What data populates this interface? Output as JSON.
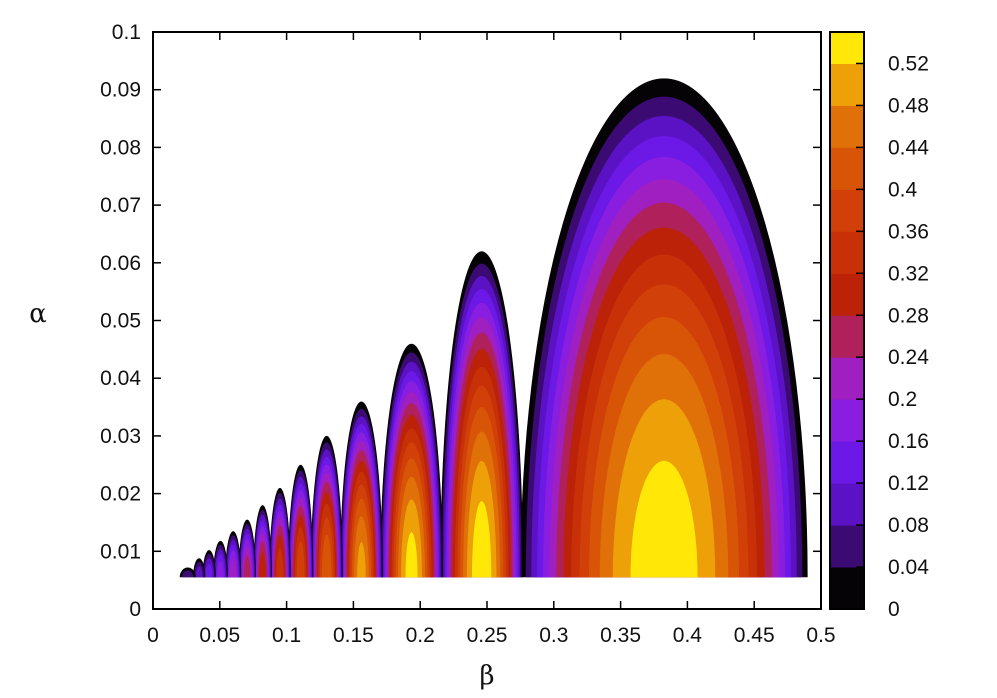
{
  "chart_data": {
    "type": "heatmap",
    "title": "",
    "xlabel": "β",
    "ylabel": "α",
    "xlim": [
      0,
      0.5
    ],
    "ylim": [
      0,
      0.1
    ],
    "xticks": [
      "0",
      "0.05",
      "0.1",
      "0.15",
      "0.2",
      "0.25",
      "0.3",
      "0.35",
      "0.4",
      "0.45",
      "0.5"
    ],
    "yticks": [
      "0",
      "0.01",
      "0.02",
      "0.03",
      "0.04",
      "0.05",
      "0.06",
      "0.07",
      "0.08",
      "0.09",
      "0.1"
    ],
    "colorbar": {
      "range": [
        0,
        0.55
      ],
      "ticks": [
        "0",
        "0.04",
        "0.08",
        "0.12",
        "0.16",
        "0.2",
        "0.24",
        "0.28",
        "0.32",
        "0.36",
        "0.4",
        "0.44",
        "0.48",
        "0.52"
      ],
      "levels": [
        {
          "from": 0.0,
          "to": 0.04,
          "color": "#050305"
        },
        {
          "from": 0.04,
          "to": 0.08,
          "color": "#3c0a73"
        },
        {
          "from": 0.08,
          "to": 0.12,
          "color": "#5a12c4"
        },
        {
          "from": 0.12,
          "to": 0.16,
          "color": "#6c18e6"
        },
        {
          "from": 0.16,
          "to": 0.2,
          "color": "#8a1ee0"
        },
        {
          "from": 0.2,
          "to": 0.24,
          "color": "#a01fc0"
        },
        {
          "from": 0.24,
          "to": 0.28,
          "color": "#b0205a"
        },
        {
          "from": 0.28,
          "to": 0.32,
          "color": "#bb2208"
        },
        {
          "from": 0.32,
          "to": 0.36,
          "color": "#c83008"
        },
        {
          "from": 0.36,
          "to": 0.4,
          "color": "#d04008"
        },
        {
          "from": 0.4,
          "to": 0.44,
          "color": "#d85508"
        },
        {
          "from": 0.44,
          "to": 0.48,
          "color": "#e07008"
        },
        {
          "from": 0.48,
          "to": 0.52,
          "color": "#eea008"
        },
        {
          "from": 0.52,
          "to": 0.55,
          "color": "#ffe808"
        }
      ]
    },
    "series": [
      {
        "beta_range": [
          0.275,
          0.49
        ],
        "alpha_min": 0.0055,
        "alpha_max": 0.092,
        "max_value": 0.55
      },
      {
        "beta_range": [
          0.215,
          0.277
        ],
        "alpha_min": 0.0055,
        "alpha_max": 0.062,
        "max_value": 0.55
      },
      {
        "beta_range": [
          0.17,
          0.217
        ],
        "alpha_min": 0.0055,
        "alpha_max": 0.046,
        "max_value": 0.54
      },
      {
        "beta_range": [
          0.14,
          0.172
        ],
        "alpha_min": 0.0055,
        "alpha_max": 0.036,
        "max_value": 0.5
      },
      {
        "beta_range": [
          0.118,
          0.142
        ],
        "alpha_min": 0.0055,
        "alpha_max": 0.03,
        "max_value": 0.44
      },
      {
        "beta_range": [
          0.101,
          0.12
        ],
        "alpha_min": 0.0055,
        "alpha_max": 0.025,
        "max_value": 0.4
      },
      {
        "beta_range": [
          0.087,
          0.103
        ],
        "alpha_min": 0.0055,
        "alpha_max": 0.021,
        "max_value": 0.36
      },
      {
        "beta_range": [
          0.075,
          0.089
        ],
        "alpha_min": 0.0055,
        "alpha_max": 0.018,
        "max_value": 0.32
      },
      {
        "beta_range": [
          0.064,
          0.077
        ],
        "alpha_min": 0.0055,
        "alpha_max": 0.0155,
        "max_value": 0.28
      },
      {
        "beta_range": [
          0.054,
          0.066
        ],
        "alpha_min": 0.0055,
        "alpha_max": 0.0135,
        "max_value": 0.24
      },
      {
        "beta_range": [
          0.045,
          0.056
        ],
        "alpha_min": 0.0055,
        "alpha_max": 0.0118,
        "max_value": 0.2
      },
      {
        "beta_range": [
          0.037,
          0.047
        ],
        "alpha_min": 0.0055,
        "alpha_max": 0.0102,
        "max_value": 0.16
      },
      {
        "beta_range": [
          0.03,
          0.039
        ],
        "alpha_min": 0.0055,
        "alpha_max": 0.0088,
        "max_value": 0.12
      },
      {
        "beta_range": [
          0.02,
          0.032
        ],
        "alpha_min": 0.0055,
        "alpha_max": 0.0072,
        "max_value": 0.08
      }
    ],
    "grid": false,
    "legend": "right"
  }
}
